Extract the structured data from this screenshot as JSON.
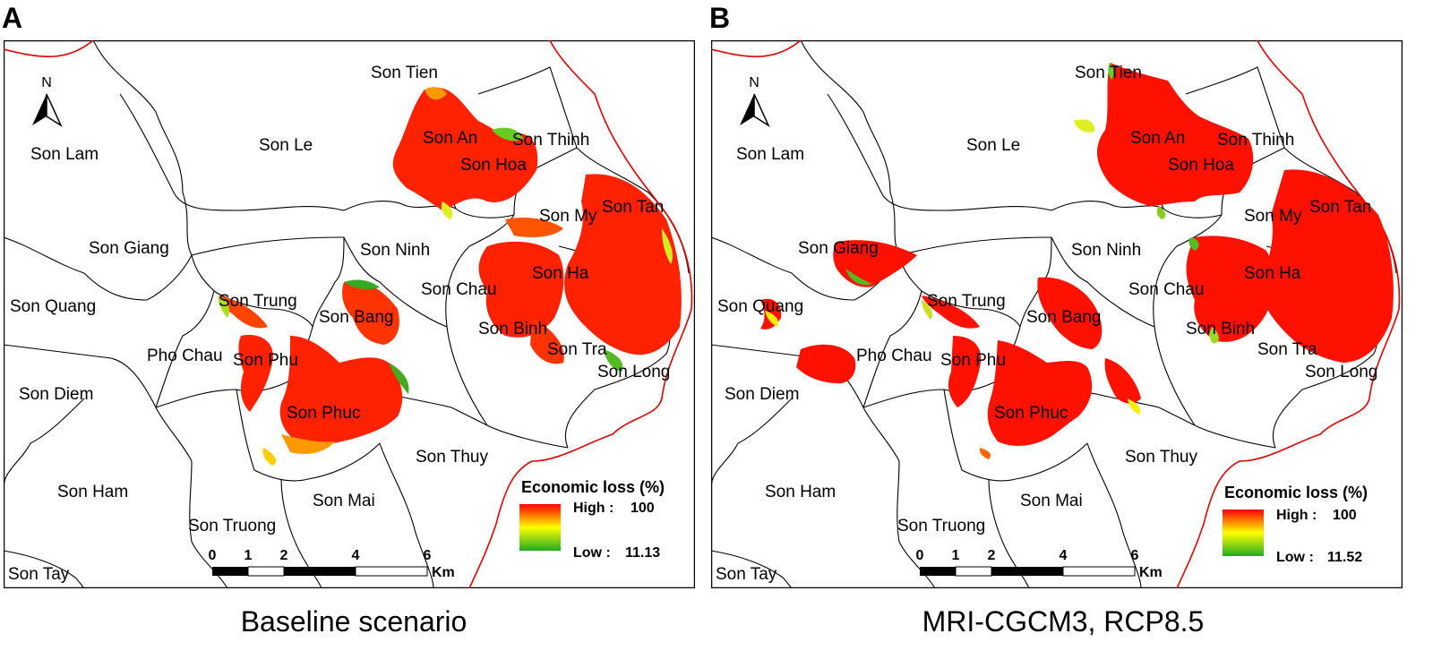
{
  "panels": [
    {
      "letter": "A",
      "caption": "Baseline scenario",
      "legend": {
        "title": "Economic loss (%)",
        "high_label": "High :",
        "high_value": "100",
        "low_label": "Low :",
        "low_value": "11.13"
      },
      "communes": [
        "Son Tien",
        "Son Le",
        "Son Lam",
        "Son An",
        "Son Thinh",
        "Son Hoa",
        "Son My",
        "Son Tan",
        "Son Giang",
        "Son Ninh",
        "Son Ha",
        "Son Quang",
        "Son Trung",
        "Son Chau",
        "Son Bang",
        "Son Binh",
        "Son Tra",
        "Pho Chau",
        "Son Phu",
        "Son Long",
        "Son Diem",
        "Son Phuc",
        "Son Thuy",
        "Son Ham",
        "Son Mai",
        "Son Truong",
        "Son Tay"
      ]
    },
    {
      "letter": "B",
      "caption": "MRI-CGCM3, RCP8.5",
      "legend": {
        "title": "Economic loss (%)",
        "high_label": "High :",
        "high_value": "100",
        "low_label": "Low :",
        "low_value": "11.52"
      },
      "communes": [
        "Son Tien",
        "Son Le",
        "Son Lam",
        "Son An",
        "Son Thinh",
        "Son Hoa",
        "Son My",
        "Son Tan",
        "Son Giang",
        "Son Ninh",
        "Son Ha",
        "Son Quang",
        "Son Trung",
        "Son Chau",
        "Son Bang",
        "Son Binh",
        "Son Tra",
        "Pho Chau",
        "Son Phu",
        "Son Long",
        "Son Diem",
        "Son Phuc",
        "Son Thuy",
        "Son Ham",
        "Son Mai",
        "Son Truong",
        "Son Tay"
      ]
    }
  ],
  "north_arrow_label": "N",
  "scale_bar": {
    "ticks": [
      "0",
      "1",
      "2",
      "4",
      "6"
    ],
    "unit": "Km"
  },
  "colors": {
    "high": "#ff0000",
    "mid": "#ffff00",
    "low": "#2db82d",
    "boundary": "#000000",
    "province_border": "#e00000"
  }
}
